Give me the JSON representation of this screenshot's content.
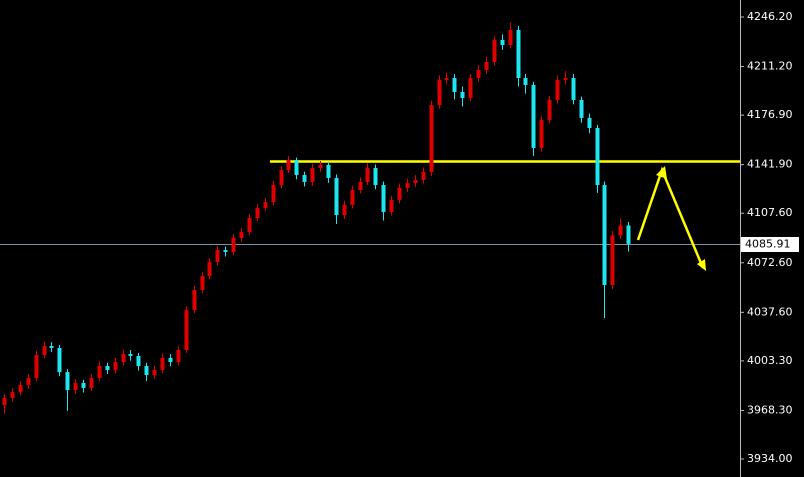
{
  "chart_data": {
    "type": "candlestick",
    "open": [
      3972.0,
      3977.1,
      3981.3,
      3986.3,
      3991.2,
      4007.5,
      4013.8,
      4012.4,
      3995.4,
      3982.7,
      3987.7,
      3984.2,
      3991.2,
      3999.7,
      3996.9,
      4002.5,
      4008.2,
      4006.8,
      3999.7,
      3993.3,
      3996.9,
      4005.4,
      4002.5,
      4011.0,
      4039.2,
      4053.4,
      4063.3,
      4073.1,
      4081.6,
      4080.2,
      4090.1,
      4094.3,
      4104.2,
      4111.3,
      4115.5,
      4127.5,
      4138.1,
      4145.2,
      4134.6,
      4129.7,
      4139.5,
      4141.7,
      4132.5,
      4106.3,
      4113.4,
      4124.0,
      4129.7,
      4139.5,
      4127.5,
      4108.5,
      4117.0,
      4125.4,
      4128.9,
      4131.1,
      4136.7,
      4184.0,
      4201.7,
      4203.1,
      4193.2,
      4189.0,
      4203.1,
      4208.8,
      4214.4,
      4230.0,
      4226.4,
      4237.0,
      4203.1,
      4198.2,
      4153.7,
      4173.4,
      4187.6,
      4201.7,
      4203.1,
      4187.6,
      4174.9,
      4167.8,
      4127.5,
      4056.9,
      4091.9,
      4099.0
    ],
    "high": [
      3980.0,
      3984.0,
      3989.0,
      3994.0,
      4010.5,
      4017.0,
      4016.5,
      4014.5,
      3997.5,
      3990.5,
      3990.0,
      3994.0,
      4003.0,
      4002.0,
      4005.5,
      4011.5,
      4011.0,
      4009.0,
      4002.0,
      4000.0,
      4008.5,
      4008.0,
      4014.0,
      4042.0,
      4056.5,
      4066.0,
      4076.0,
      4084.5,
      4084.0,
      4093.0,
      4097.5,
      4107.0,
      4114.0,
      4118.5,
      4130.5,
      4141.0,
      4148.0,
      4147.0,
      4137.0,
      4142.5,
      4144.5,
      4144.0,
      4135.0,
      4116.5,
      4127.0,
      4133.0,
      4143.0,
      4142.0,
      4130.0,
      4120.0,
      4128.5,
      4132.0,
      4134.5,
      4140.0,
      4187.0,
      4205.0,
      4207.0,
      4206.0,
      4197.0,
      4206.0,
      4212.0,
      4218.0,
      4233.0,
      4234.0,
      4242.0,
      4240.0,
      4206.0,
      4200.5,
      4176.5,
      4190.5,
      4205.0,
      4208.0,
      4206.0,
      4190.0,
      4178.0,
      4170.0,
      4130.0,
      4095.0,
      4104.0,
      4101.5
    ],
    "low": [
      3966.0,
      3974.5,
      3979.0,
      3983.5,
      3989.0,
      4005.0,
      4009.5,
      3992.5,
      3968.0,
      3980.0,
      3981.0,
      3982.0,
      3989.0,
      3994.0,
      3994.5,
      4000.0,
      4003.5,
      3996.5,
      3989.0,
      3990.5,
      3994.5,
      3999.5,
      4000.0,
      4009.0,
      4037.0,
      4051.0,
      4061.0,
      4070.5,
      4077.0,
      4078.0,
      4087.5,
      4092.0,
      4102.0,
      4109.0,
      4113.0,
      4125.0,
      4136.0,
      4131.5,
      4126.5,
      4127.0,
      4136.5,
      4129.0,
      4100.0,
      4103.5,
      4111.0,
      4121.5,
      4127.5,
      4124.5,
      4102.5,
      4106.0,
      4114.5,
      4122.5,
      4126.0,
      4128.5,
      4134.0,
      4181.5,
      4198.5,
      4188.0,
      4183.0,
      4186.5,
      4200.5,
      4206.0,
      4212.0,
      4223.0,
      4224.0,
      4197.0,
      4192.0,
      4148.0,
      4151.0,
      4171.0,
      4185.0,
      4198.5,
      4184.5,
      4171.5,
      4164.0,
      4122.0,
      4033.6,
      4054.0,
      4089.5,
      4080.5
    ],
    "close": [
      3977.1,
      3981.3,
      3986.3,
      3991.2,
      4007.5,
      4013.8,
      4012.4,
      3995.4,
      3982.7,
      3987.7,
      3984.2,
      3991.2,
      3999.7,
      3996.9,
      4002.5,
      4008.2,
      4006.8,
      3999.7,
      3993.3,
      3996.9,
      4005.4,
      4002.5,
      4011.0,
      4039.2,
      4053.4,
      4063.3,
      4073.1,
      4081.6,
      4080.2,
      4090.1,
      4094.3,
      4104.2,
      4111.3,
      4115.5,
      4127.5,
      4138.1,
      4145.2,
      4134.6,
      4129.7,
      4139.5,
      4141.7,
      4132.5,
      4106.3,
      4113.4,
      4124.0,
      4129.7,
      4139.5,
      4127.5,
      4108.5,
      4117.0,
      4125.4,
      4128.9,
      4131.1,
      4136.7,
      4184.0,
      4201.7,
      4203.1,
      4193.2,
      4189.0,
      4203.1,
      4208.8,
      4214.4,
      4230.0,
      4226.4,
      4237.0,
      4203.1,
      4198.2,
      4153.7,
      4173.4,
      4187.6,
      4201.7,
      4203.1,
      4187.6,
      4174.9,
      4167.8,
      4127.5,
      4056.9,
      4091.9,
      4099.0,
      4085.91
    ],
    "up_color": "#e00000",
    "down_color": "#1ee6f0",
    "ylim": [
      3921.3,
      4258.2
    ],
    "yticks": [
      {
        "value": 4246.2,
        "label": "4246.20"
      },
      {
        "value": 4211.2,
        "label": "4211.20"
      },
      {
        "value": 4176.9,
        "label": "4176.90"
      },
      {
        "value": 4141.9,
        "label": "4141.90"
      },
      {
        "value": 4107.6,
        "label": "4107.60"
      },
      {
        "value": 4072.6,
        "label": "4072.60"
      },
      {
        "value": 4037.6,
        "label": "4037.60"
      },
      {
        "value": 4003.3,
        "label": "4003.30"
      },
      {
        "value": 3968.3,
        "label": "3968.30"
      },
      {
        "value": 3934.0,
        "label": "3934.00"
      }
    ],
    "last_price": 4085.91,
    "level": 4144.5,
    "level_color": "#ffff00"
  }
}
